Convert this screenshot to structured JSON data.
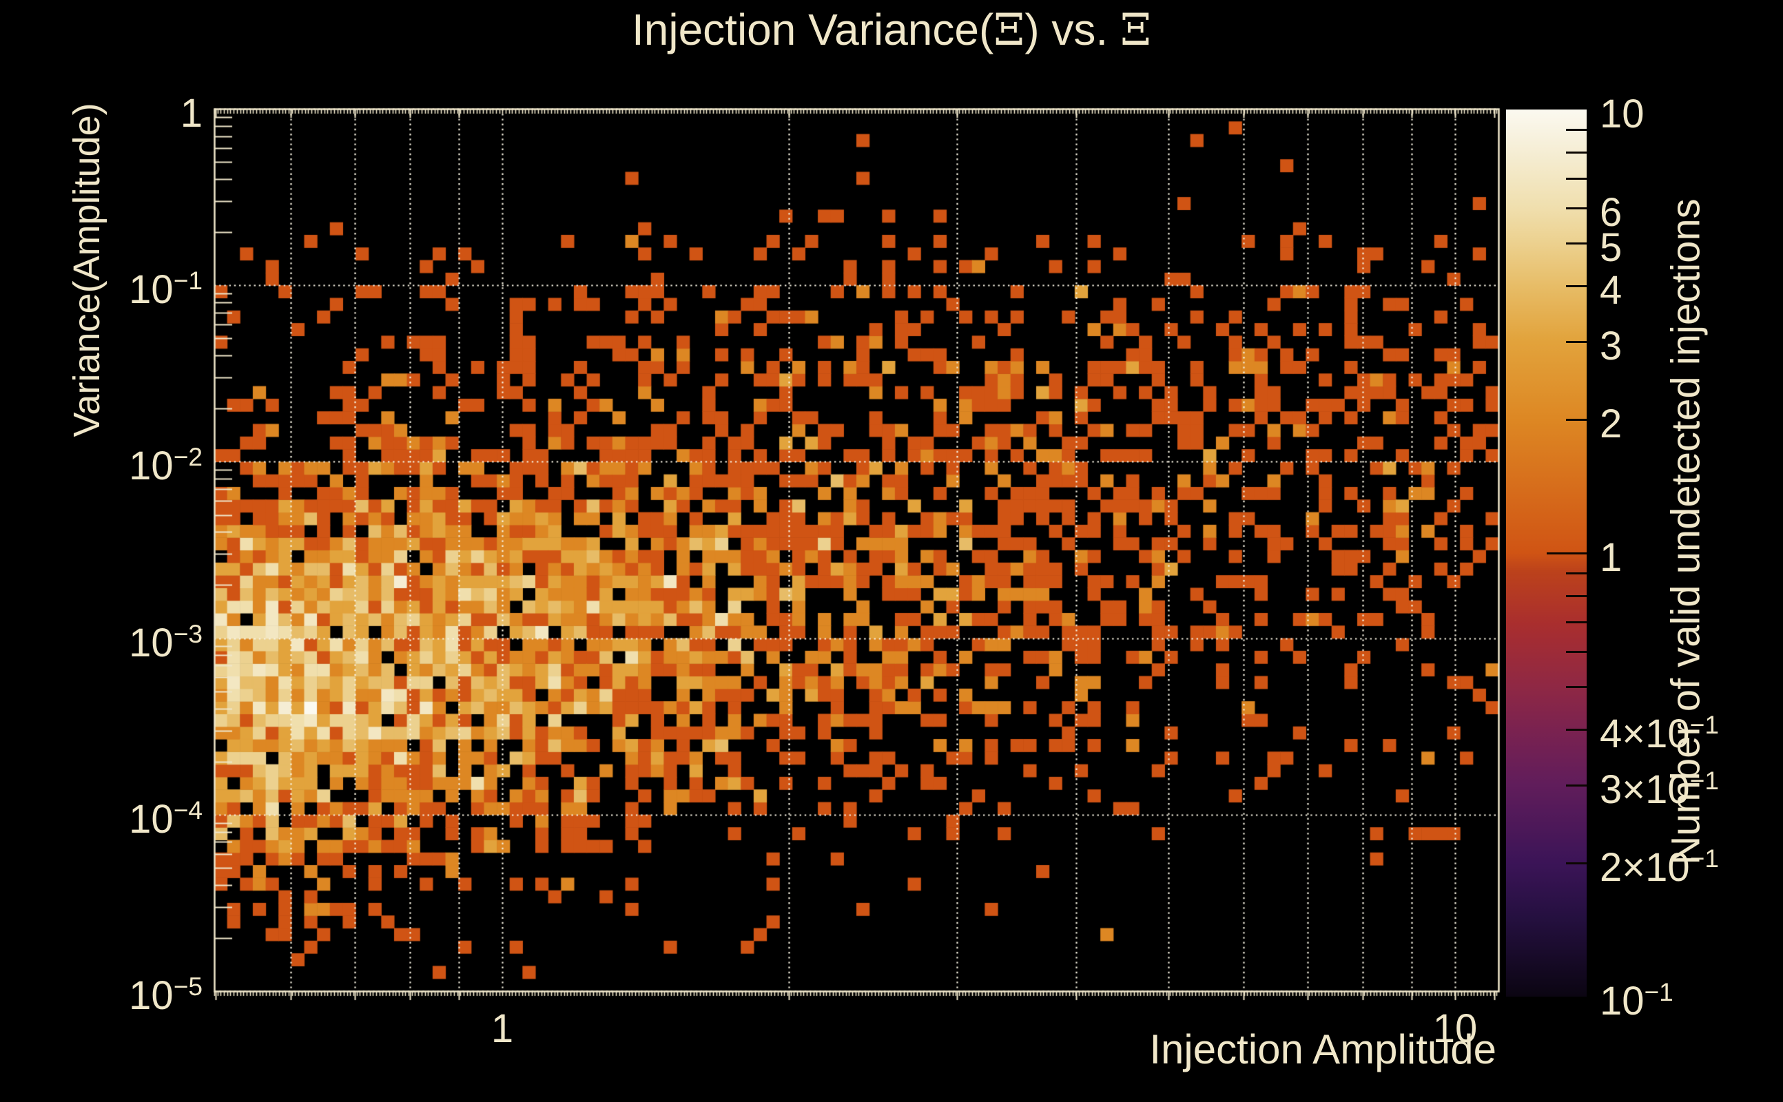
{
  "title": "Injection Variance(Ξ) vs. Ξ",
  "colors": {
    "background": "#000000",
    "text": "#f0e7c9",
    "grid": "#f8f3e3",
    "frame": "#efe6ca",
    "colorbar_tick": "#0c0602"
  },
  "chart_data": {
    "type": "heatmap",
    "title": "Injection Variance(Ξ) vs. Ξ",
    "xlabel": "Injection Amplitude",
    "ylabel": "Variance(Amplitude)",
    "zlabel": "Number of valid undetected injections",
    "x_scale": "log",
    "x_range": [
      0.498,
      11.1
    ],
    "y_scale": "log",
    "y_range": [
      1e-05,
      1
    ],
    "z_scale": "log",
    "z_range": [
      0.1,
      10
    ],
    "x_ticks": [
      {
        "v": 1,
        "base": "1",
        "exp": ""
      },
      {
        "v": 10,
        "base": "10",
        "exp": ""
      }
    ],
    "y_ticks": [
      {
        "v": 1,
        "base": "1",
        "exp": ""
      },
      {
        "v": 0.1,
        "base": "10",
        "exp": "−1"
      },
      {
        "v": 0.01,
        "base": "10",
        "exp": "−2"
      },
      {
        "v": 0.001,
        "base": "10",
        "exp": "−3"
      },
      {
        "v": 0.0001,
        "base": "10",
        "exp": "−4"
      },
      {
        "v": 1e-05,
        "base": "10",
        "exp": "−5"
      }
    ],
    "z_ticks": [
      {
        "v": 10,
        "base": "10",
        "exp": ""
      },
      {
        "v": 6,
        "base": "6",
        "exp": ""
      },
      {
        "v": 5,
        "base": "5",
        "exp": ""
      },
      {
        "v": 4,
        "base": "4",
        "exp": ""
      },
      {
        "v": 3,
        "base": "3",
        "exp": ""
      },
      {
        "v": 2,
        "base": "2",
        "exp": ""
      },
      {
        "v": 1,
        "base": "1",
        "exp": ""
      },
      {
        "v": 0.4,
        "base": "4×10",
        "exp": "−1"
      },
      {
        "v": 0.3,
        "base": "3×10",
        "exp": "−1"
      },
      {
        "v": 0.2,
        "base": "2×10",
        "exp": "−1"
      },
      {
        "v": 0.1,
        "base": "10",
        "exp": "−1"
      }
    ],
    "grid_lines": {
      "style": "dotted",
      "x": [
        0.6,
        0.7,
        0.8,
        0.9,
        1,
        2,
        3,
        4,
        5,
        6,
        7,
        8,
        9,
        10
      ],
      "y": [
        1,
        0.1,
        0.01,
        0.001,
        0.0001,
        1e-05
      ]
    },
    "bins": {
      "nx": 100,
      "ny": 70
    },
    "palette": [
      {
        "t": 0.0,
        "color": "#0b0512"
      },
      {
        "t": 0.09,
        "color": "#251040"
      },
      {
        "t": 0.15,
        "color": "#3b1457"
      },
      {
        "t": 0.24,
        "color": "#611d5b"
      },
      {
        "t": 0.3,
        "color": "#7a2250"
      },
      {
        "t": 0.35,
        "color": "#8f2844"
      },
      {
        "t": 0.42,
        "color": "#a92e2e"
      },
      {
        "t": 0.48,
        "color": "#bc421b"
      },
      {
        "t": 0.5,
        "color": "#d05414"
      },
      {
        "t": 0.65,
        "color": "#dd8723"
      },
      {
        "t": 0.74,
        "color": "#e2a33c"
      },
      {
        "t": 0.8,
        "color": "#e7bc66"
      },
      {
        "t": 0.85,
        "color": "#ecd18f"
      },
      {
        "t": 0.89,
        "color": "#f0dfae"
      },
      {
        "t": 0.95,
        "color": "#f5edd3"
      },
      {
        "t": 1.0,
        "color": "#fbf9f0"
      }
    ],
    "density_model": {
      "seed": 1337,
      "ridge": {
        "center_intercept": -3.0,
        "center_slope": 0.9,
        "sigma_intercept": 0.62,
        "sigma_slope": 0.12,
        "lambda_at_x1": 2.7,
        "lambda_log_slope": -1.05,
        "lambda_max": 4.2
      },
      "background": {
        "lambda": 0.062,
        "x_fade": 0.4,
        "v_min": -4.25,
        "v_max": -0.72,
        "deep_min": -4.72,
        "deep_factor": 0.4,
        "upper_max": -0.66,
        "upper_factor": 0.2
      },
      "blob": {
        "amp": 0.2,
        "u": 0.4,
        "su": 0.5,
        "v": -1.55,
        "sv": 0.5
      }
    },
    "notes": "2D log-log histogram of injection variance vs injection amplitude. Bright cream/gold core (counts 3-10) at amplitude 0.5-1 around variance 1e-3; density and counts fall off toward higher amplitude, with mostly single-count red-orange cells beyond amplitude ~4. Scattered outliers reach variance ~2e-1 at top and ~2e-5 at bottom. Empty bins are black."
  }
}
